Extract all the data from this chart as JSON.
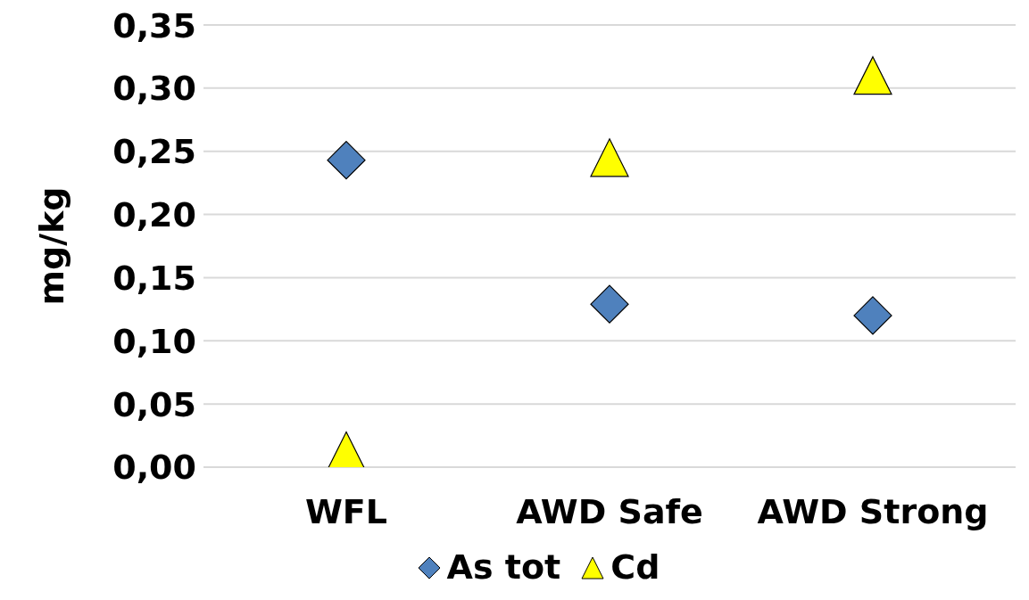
{
  "chart_data": {
    "type": "scatter",
    "ylabel": "mg/kg",
    "categories": [
      "WFL",
      "AWD Safe",
      "AWD Strong"
    ],
    "series": [
      {
        "name": "As tot",
        "color": "#4f81bd",
        "marker": "diamond",
        "values": [
          0.243,
          0.129,
          0.12
        ]
      },
      {
        "name": "Cd",
        "color": "#ffff00",
        "marker": "triangle",
        "values": [
          0.013,
          0.245,
          0.31
        ]
      }
    ],
    "ylim": [
      0,
      0.35
    ],
    "yticks": [
      {
        "value": 0,
        "label": "0,00"
      },
      {
        "value": 0.05,
        "label": "0,05"
      },
      {
        "value": 0.1,
        "label": "0,10"
      },
      {
        "value": 0.15,
        "label": "0,15"
      },
      {
        "value": 0.2,
        "label": "0,20"
      },
      {
        "value": 0.25,
        "label": "0,25"
      },
      {
        "value": 0.3,
        "label": "0,30"
      },
      {
        "value": 0.35,
        "label": "0,35"
      }
    ],
    "grid": "y",
    "legend": "bottom"
  }
}
